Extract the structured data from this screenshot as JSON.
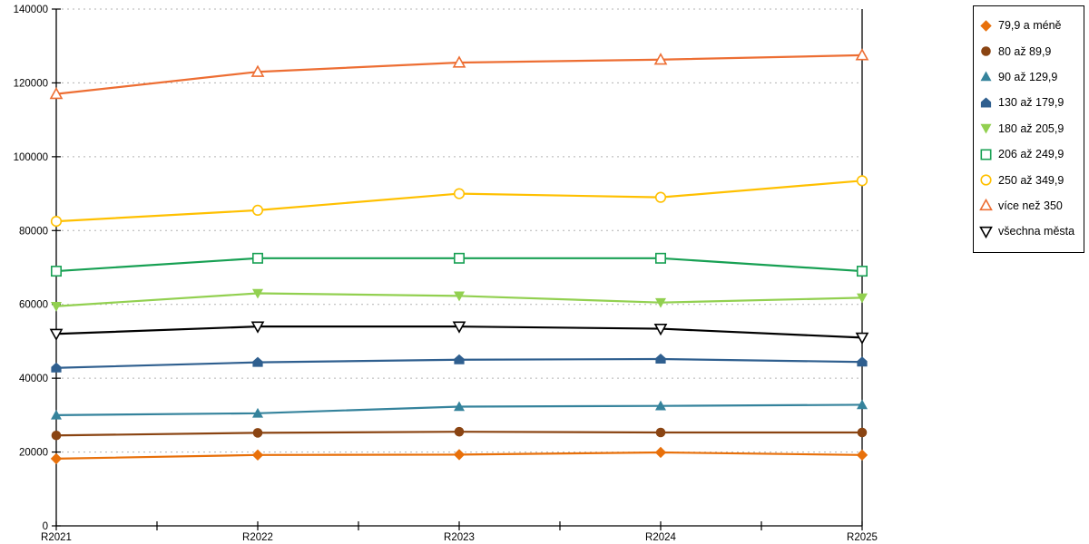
{
  "chart_data": {
    "type": "line",
    "title": "",
    "xlabel": "",
    "ylabel": "",
    "categories": [
      "R2021",
      "R2022",
      "R2023",
      "R2024",
      "R2025"
    ],
    "series": [
      {
        "name": "79,9 a méně",
        "marker": "diamond",
        "color": "#E8700A",
        "values": [
          18200,
          19200,
          19300,
          19900,
          19200
        ]
      },
      {
        "name": "80 až 89,9",
        "marker": "circle",
        "color": "#8A4412",
        "values": [
          24500,
          25200,
          25500,
          25300,
          25300
        ]
      },
      {
        "name": "90 až 129,9",
        "marker": "triangle-up",
        "color": "#35839C",
        "values": [
          30000,
          30500,
          32300,
          32500,
          32800
        ]
      },
      {
        "name": "130 až 179,9",
        "marker": "pentagon",
        "color": "#2F5F8F",
        "values": [
          42800,
          44300,
          45000,
          45200,
          44400
        ]
      },
      {
        "name": "180 až 205,9",
        "marker": "triangle-down",
        "color": "#92D050",
        "values": [
          59500,
          63000,
          62300,
          60500,
          61800
        ]
      },
      {
        "name": "206 až 249,9",
        "marker": "square-open",
        "color": "#17A053",
        "values": [
          69000,
          72500,
          72500,
          72500,
          69000
        ]
      },
      {
        "name": "250 až 349,9",
        "marker": "circle-open",
        "color": "#FFC000",
        "values": [
          82500,
          85500,
          90000,
          89000,
          93500
        ]
      },
      {
        "name": "více než 350",
        "marker": "triangle-up-open",
        "color": "#ED6E33",
        "values": [
          117000,
          123000,
          125500,
          126300,
          127500
        ]
      },
      {
        "name": "všechna města",
        "marker": "triangle-down-open",
        "color": "#000000",
        "values": [
          52000,
          54000,
          54000,
          53400,
          51000
        ]
      }
    ],
    "ylim": [
      0,
      140000
    ],
    "ytick_step": 20000,
    "ytick_labels": [
      "0",
      "20000",
      "40000",
      "60000",
      "80000",
      "100000",
      "120000",
      "140000"
    ],
    "grid": "horizontal-dashed",
    "legend_position": "top-right"
  },
  "colors": {
    "background": "#FFFFFF",
    "grid": "#B3B3B3",
    "axis": "#000000",
    "legend_border": "#000000",
    "open_marker_fill": "#FFFFFF"
  }
}
